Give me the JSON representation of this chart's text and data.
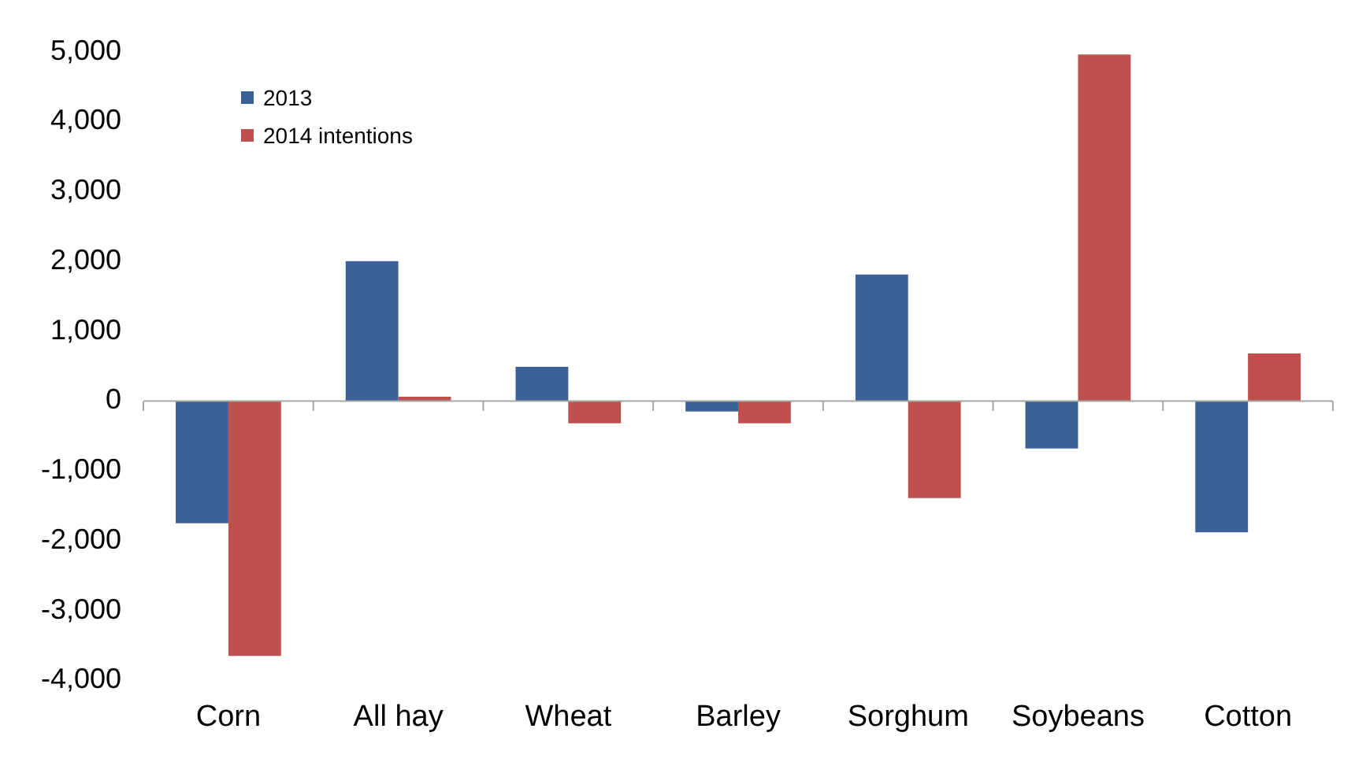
{
  "chart_data": {
    "type": "bar",
    "categories": [
      "Corn",
      "All hay",
      "Wheat",
      "Barley",
      "Sorghum",
      "Soybeans",
      "Cotton"
    ],
    "series": [
      {
        "name": "2013",
        "color": "#3c6199",
        "values": [
          -1750,
          2000,
          490,
          -150,
          1810,
          -680,
          -1880
        ]
      },
      {
        "name": "2014 intentions",
        "color": "#c0504d",
        "values": [
          -3650,
          60,
          -320,
          -320,
          -1390,
          4960,
          680
        ]
      }
    ],
    "ylim": [
      -4000,
      5000
    ],
    "yticks": [
      {
        "value": -4000,
        "label": "-4,000"
      },
      {
        "value": -3000,
        "label": "-3,000"
      },
      {
        "value": -2000,
        "label": "-2,000"
      },
      {
        "value": -1000,
        "label": "-1,000"
      },
      0,
      {
        "value": 1000,
        "label": "1,000"
      },
      {
        "value": 2000,
        "label": "2,000"
      },
      {
        "value": 3000,
        "label": "3,000"
      },
      {
        "value": 4000,
        "label": "4,000"
      },
      {
        "value": 5000,
        "label": "5,000"
      }
    ],
    "ref_lines": [
      {
        "axis": "y",
        "value": 0,
        "color": "#a6a6a6"
      }
    ],
    "legend": "top left"
  }
}
